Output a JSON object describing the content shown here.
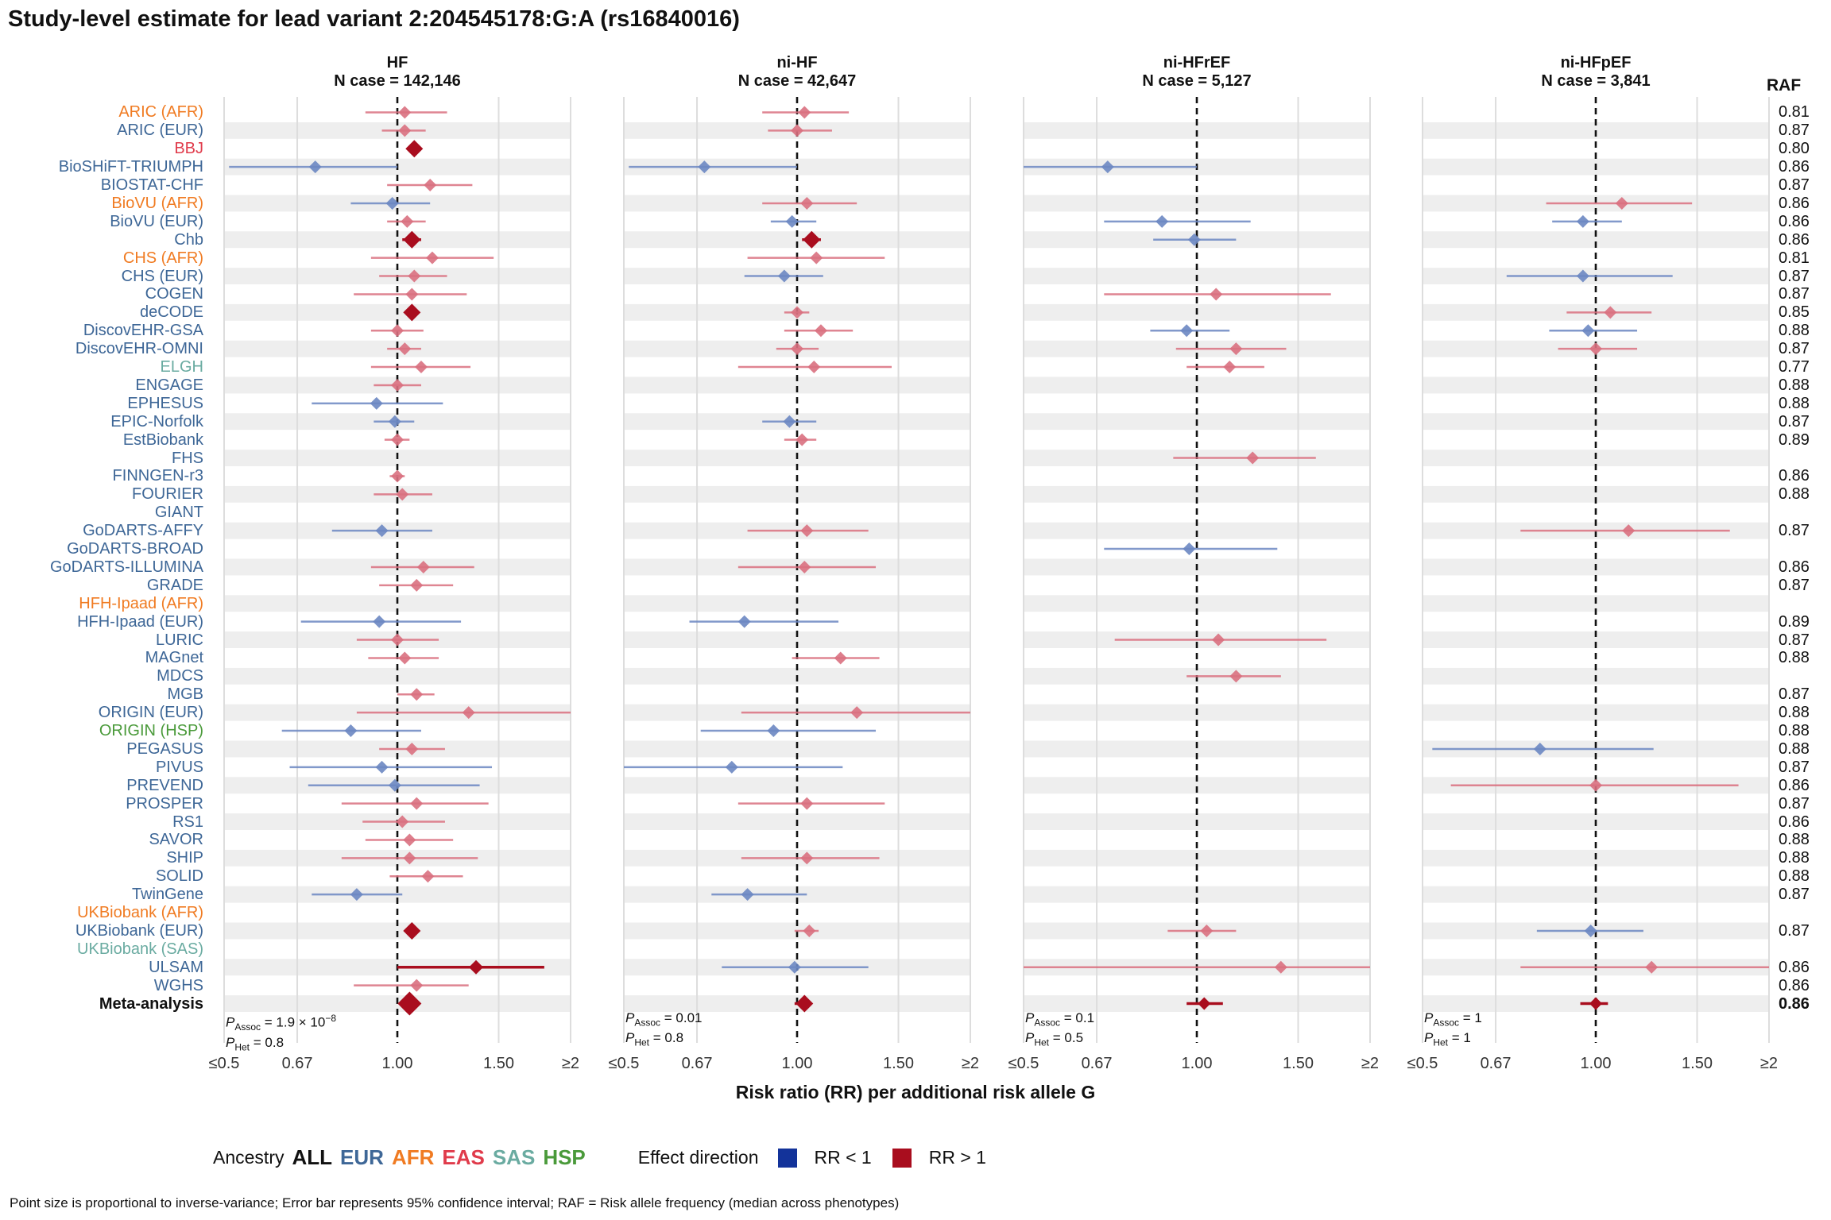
{
  "title": "Study-level estimate for lead variant 2:204545178:G:A (rs16840016)",
  "raf_header": "RAF",
  "x_axis_title": "Risk ratio (RR) per additional risk allele G",
  "x_ticks": [
    "≤0.5",
    "0.67",
    "1.00",
    "1.50",
    "≥2"
  ],
  "legend": {
    "ancestry_label": "Ancestry",
    "ancestries": [
      {
        "label": "ALL",
        "color": "#111111"
      },
      {
        "label": "EUR",
        "color": "#3E6797"
      },
      {
        "label": "AFR",
        "color": "#F07B22"
      },
      {
        "label": "EAS",
        "color": "#E03B4B"
      },
      {
        "label": "SAS",
        "color": "#6AABA1"
      },
      {
        "label": "HSP",
        "color": "#4A9A3A"
      }
    ],
    "effect_label": "Effect direction",
    "effects": [
      {
        "label": "RR < 1",
        "color": "#13339A"
      },
      {
        "label": "RR > 1",
        "color": "#A90D1E"
      }
    ]
  },
  "caption": "Point size is proportional to inverse-variance; Error bar represents 95% confidence interval; RAF = Risk allele frequency (median across phenotypes)",
  "colors": {
    "blue": "#6C87C2",
    "red": "#D9707F",
    "dark_red": "#A90D1E",
    "stripe": "#EEEEEE",
    "grid": "#DDDDDD"
  },
  "chart_data": {
    "type": "forest",
    "x_scale": "log",
    "xlim": [
      0.5,
      2
    ],
    "ticks": [
      0.5,
      0.67,
      1.0,
      1.5,
      2.0
    ],
    "studies": [
      {
        "name": "ARIC (AFR)",
        "ancestry": "AFR",
        "raf": "0.81"
      },
      {
        "name": "ARIC (EUR)",
        "ancestry": "EUR",
        "raf": "0.87"
      },
      {
        "name": "BBJ",
        "ancestry": "EAS",
        "raf": "0.80"
      },
      {
        "name": "BioSHiFT-TRIUMPH",
        "ancestry": "EUR",
        "raf": "0.86"
      },
      {
        "name": "BIOSTAT-CHF",
        "ancestry": "EUR",
        "raf": "0.87"
      },
      {
        "name": "BioVU (AFR)",
        "ancestry": "AFR",
        "raf": "0.86"
      },
      {
        "name": "BioVU (EUR)",
        "ancestry": "EUR",
        "raf": "0.86"
      },
      {
        "name": "Chb",
        "ancestry": "EUR",
        "raf": "0.86"
      },
      {
        "name": "CHS (AFR)",
        "ancestry": "AFR",
        "raf": "0.81"
      },
      {
        "name": "CHS (EUR)",
        "ancestry": "EUR",
        "raf": "0.87"
      },
      {
        "name": "COGEN",
        "ancestry": "EUR",
        "raf": "0.87"
      },
      {
        "name": "deCODE",
        "ancestry": "EUR",
        "raf": "0.85"
      },
      {
        "name": "DiscovEHR-GSA",
        "ancestry": "EUR",
        "raf": "0.88"
      },
      {
        "name": "DiscovEHR-OMNI",
        "ancestry": "EUR",
        "raf": "0.87"
      },
      {
        "name": "ELGH",
        "ancestry": "SAS",
        "raf": "0.77"
      },
      {
        "name": "ENGAGE",
        "ancestry": "EUR",
        "raf": "0.88"
      },
      {
        "name": "EPHESUS",
        "ancestry": "EUR",
        "raf": "0.88"
      },
      {
        "name": "EPIC-Norfolk",
        "ancestry": "EUR",
        "raf": "0.87"
      },
      {
        "name": "EstBiobank",
        "ancestry": "EUR",
        "raf": "0.89"
      },
      {
        "name": "FHS",
        "ancestry": "EUR",
        "raf": ""
      },
      {
        "name": "FINNGEN-r3",
        "ancestry": "EUR",
        "raf": "0.86"
      },
      {
        "name": "FOURIER",
        "ancestry": "EUR",
        "raf": "0.88"
      },
      {
        "name": "GIANT",
        "ancestry": "EUR",
        "raf": ""
      },
      {
        "name": "GoDARTS-AFFY",
        "ancestry": "EUR",
        "raf": "0.87"
      },
      {
        "name": "GoDARTS-BROAD",
        "ancestry": "EUR",
        "raf": ""
      },
      {
        "name": "GoDARTS-ILLUMINA",
        "ancestry": "EUR",
        "raf": "0.86"
      },
      {
        "name": "GRADE",
        "ancestry": "EUR",
        "raf": "0.87"
      },
      {
        "name": "HFH-Ipaad (AFR)",
        "ancestry": "AFR",
        "raf": ""
      },
      {
        "name": "HFH-Ipaad (EUR)",
        "ancestry": "EUR",
        "raf": "0.89"
      },
      {
        "name": "LURIC",
        "ancestry": "EUR",
        "raf": "0.87"
      },
      {
        "name": "MAGnet",
        "ancestry": "EUR",
        "raf": "0.88"
      },
      {
        "name": "MDCS",
        "ancestry": "EUR",
        "raf": ""
      },
      {
        "name": "MGB",
        "ancestry": "EUR",
        "raf": "0.87"
      },
      {
        "name": "ORIGIN (EUR)",
        "ancestry": "EUR",
        "raf": "0.88"
      },
      {
        "name": "ORIGIN (HSP)",
        "ancestry": "HSP",
        "raf": "0.88"
      },
      {
        "name": "PEGASUS",
        "ancestry": "EUR",
        "raf": "0.88"
      },
      {
        "name": "PIVUS",
        "ancestry": "EUR",
        "raf": "0.87"
      },
      {
        "name": "PREVEND",
        "ancestry": "EUR",
        "raf": "0.86"
      },
      {
        "name": "PROSPER",
        "ancestry": "EUR",
        "raf": "0.87"
      },
      {
        "name": "RS1",
        "ancestry": "EUR",
        "raf": "0.86"
      },
      {
        "name": "SAVOR",
        "ancestry": "EUR",
        "raf": "0.88"
      },
      {
        "name": "SHIP",
        "ancestry": "EUR",
        "raf": "0.88"
      },
      {
        "name": "SOLID",
        "ancestry": "EUR",
        "raf": "0.88"
      },
      {
        "name": "TwinGene",
        "ancestry": "EUR",
        "raf": "0.87"
      },
      {
        "name": "UKBiobank (AFR)",
        "ancestry": "AFR",
        "raf": ""
      },
      {
        "name": "UKBiobank (EUR)",
        "ancestry": "EUR",
        "raf": "0.87"
      },
      {
        "name": "UKBiobank (SAS)",
        "ancestry": "SAS",
        "raf": ""
      },
      {
        "name": "ULSAM",
        "ancestry": "EUR",
        "raf": "0.86"
      },
      {
        "name": "WGHS",
        "ancestry": "EUR",
        "raf": "0.86"
      },
      {
        "name": "Meta-analysis",
        "ancestry": "ALL",
        "raf": "0.86",
        "meta": true
      }
    ],
    "panels": [
      {
        "name": "HF",
        "n_case": "N case = 142,146",
        "p_assoc_value": "1.9",
        "p_assoc_exp": "−8",
        "p_het": "0.8",
        "estimates": [
          [
            1.03,
            0.88,
            1.22,
            1
          ],
          [
            1.03,
            0.94,
            1.12,
            1
          ],
          [
            1.07,
            1.07,
            1.07,
            2
          ],
          [
            0.72,
            0.51,
            1.0,
            1
          ],
          [
            1.14,
            0.96,
            1.35,
            1
          ],
          [
            0.98,
            0.83,
            1.14,
            1
          ],
          [
            1.04,
            0.96,
            1.12,
            1
          ],
          [
            1.06,
            1.02,
            1.1,
            2
          ],
          [
            1.15,
            0.9,
            1.47,
            1
          ],
          [
            1.07,
            0.93,
            1.22,
            1
          ],
          [
            1.06,
            0.84,
            1.32,
            1
          ],
          [
            1.06,
            1.03,
            1.09,
            2
          ],
          [
            1.0,
            0.9,
            1.11,
            1
          ],
          [
            1.03,
            0.96,
            1.1,
            1
          ],
          [
            1.1,
            0.9,
            1.34,
            1
          ],
          [
            1.0,
            0.91,
            1.1,
            1
          ],
          [
            0.92,
            0.71,
            1.2,
            1
          ],
          [
            0.99,
            0.91,
            1.07,
            1
          ],
          [
            1.0,
            0.95,
            1.05,
            1
          ],
          null,
          [
            1.0,
            0.97,
            1.03,
            1
          ],
          [
            1.02,
            0.91,
            1.15,
            1
          ],
          null,
          [
            0.94,
            0.77,
            1.15,
            1
          ],
          null,
          [
            1.11,
            0.9,
            1.36,
            1
          ],
          [
            1.08,
            0.93,
            1.25,
            1
          ],
          null,
          [
            0.93,
            0.68,
            1.29,
            1
          ],
          [
            1.0,
            0.85,
            1.18,
            1
          ],
          [
            1.03,
            0.89,
            1.18,
            1
          ],
          null,
          [
            1.08,
            1.0,
            1.16,
            1
          ],
          [
            1.33,
            0.85,
            2.1,
            1
          ],
          [
            0.83,
            0.63,
            1.1,
            1
          ],
          [
            1.06,
            0.93,
            1.21,
            1
          ],
          [
            0.94,
            0.65,
            1.46,
            1
          ],
          [
            0.99,
            0.7,
            1.39,
            1
          ],
          [
            1.08,
            0.8,
            1.44,
            1
          ],
          [
            1.02,
            0.87,
            1.21,
            1
          ],
          [
            1.05,
            0.88,
            1.25,
            1
          ],
          [
            1.05,
            0.8,
            1.38,
            1
          ],
          [
            1.13,
            0.97,
            1.3,
            1
          ],
          [
            0.85,
            0.71,
            1.02,
            1
          ],
          null,
          [
            1.06,
            1.03,
            1.09,
            2
          ],
          null,
          [
            1.37,
            1.0,
            1.8,
            3
          ],
          [
            1.08,
            0.84,
            1.33,
            1
          ],
          [
            1.05,
            1.03,
            1.07,
            4
          ]
        ]
      },
      {
        "name": "ni-HF",
        "n_case": "N case = 42,647",
        "p_assoc_value": "0.01",
        "p_assoc_exp": "",
        "p_het": "0.8",
        "estimates": [
          [
            1.03,
            0.87,
            1.23,
            1
          ],
          [
            1.0,
            0.89,
            1.15,
            1
          ],
          null,
          [
            0.69,
            0.51,
            1.0,
            1
          ],
          null,
          [
            1.04,
            0.87,
            1.27,
            1
          ],
          [
            0.98,
            0.9,
            1.08,
            1
          ],
          [
            1.06,
            1.02,
            1.1,
            2
          ],
          [
            1.08,
            0.82,
            1.42,
            1
          ],
          [
            0.95,
            0.81,
            1.11,
            1
          ],
          null,
          [
            1.0,
            0.95,
            1.05,
            1
          ],
          [
            1.1,
            0.95,
            1.25,
            1
          ],
          [
            1.0,
            0.92,
            1.09,
            1
          ],
          [
            1.07,
            0.79,
            1.46,
            1
          ],
          null,
          null,
          [
            0.97,
            0.87,
            1.08,
            1
          ],
          [
            1.02,
            0.95,
            1.08,
            1
          ],
          null,
          null,
          null,
          null,
          [
            1.04,
            0.82,
            1.33,
            1
          ],
          null,
          [
            1.03,
            0.79,
            1.37,
            1
          ],
          null,
          null,
          [
            0.81,
            0.65,
            1.18,
            1
          ],
          null,
          [
            1.19,
            0.98,
            1.39,
            1
          ],
          null,
          null,
          [
            1.27,
            0.8,
            2.0,
            1
          ],
          [
            0.91,
            0.68,
            1.37,
            1
          ],
          null,
          [
            0.77,
            0.5,
            1.2,
            1
          ],
          null,
          [
            1.04,
            0.79,
            1.42,
            1
          ],
          null,
          null,
          [
            1.04,
            0.8,
            1.39,
            1
          ],
          null,
          [
            0.82,
            0.71,
            1.04,
            1
          ],
          null,
          [
            1.05,
            0.99,
            1.09,
            1
          ],
          null,
          [
            0.99,
            0.74,
            1.33,
            1
          ],
          null,
          [
            1.03,
            0.99,
            1.06,
            2
          ]
        ]
      },
      {
        "name": "ni-HFrEF",
        "n_case": "N case = 5,127",
        "p_assoc_value": "0.1",
        "p_assoc_exp": "",
        "p_het": "0.5",
        "estimates": [
          null,
          null,
          null,
          [
            0.7,
            0.5,
            1.0,
            1
          ],
          null,
          null,
          [
            0.87,
            0.69,
            1.24,
            1
          ],
          [
            0.99,
            0.84,
            1.17,
            1
          ],
          null,
          null,
          [
            1.08,
            0.69,
            1.71,
            1
          ],
          null,
          [
            0.96,
            0.83,
            1.14,
            1
          ],
          [
            1.17,
            0.92,
            1.43,
            1
          ],
          [
            1.14,
            0.96,
            1.31,
            1
          ],
          null,
          null,
          null,
          null,
          [
            1.25,
            0.91,
            1.61,
            1
          ],
          null,
          null,
          null,
          null,
          [
            0.97,
            0.69,
            1.38,
            1
          ],
          null,
          null,
          null,
          null,
          [
            1.09,
            0.72,
            1.68,
            1
          ],
          null,
          [
            1.17,
            0.96,
            1.4,
            1
          ],
          null,
          null,
          null,
          null,
          null,
          null,
          null,
          null,
          null,
          null,
          null,
          null,
          null,
          [
            1.04,
            0.89,
            1.17,
            1
          ],
          null,
          [
            1.4,
            0.5,
            2.0,
            1
          ],
          null,
          [
            1.03,
            0.96,
            1.11,
            1
          ]
        ]
      },
      {
        "name": "ni-HFpEF",
        "n_case": "N case = 3,841",
        "p_assoc_value": "1",
        "p_assoc_exp": "",
        "p_het": "1",
        "estimates": [
          null,
          null,
          null,
          null,
          null,
          [
            1.11,
            0.82,
            1.47,
            1
          ],
          [
            0.95,
            0.84,
            1.11,
            1
          ],
          null,
          null,
          [
            0.95,
            0.7,
            1.36,
            1
          ],
          null,
          [
            1.06,
            0.89,
            1.25,
            1
          ],
          [
            0.97,
            0.83,
            1.18,
            1
          ],
          [
            1.0,
            0.86,
            1.18,
            1
          ],
          null,
          null,
          null,
          null,
          null,
          null,
          null,
          null,
          null,
          [
            1.14,
            0.74,
            1.71,
            1
          ],
          null,
          null,
          null,
          null,
          null,
          null,
          null,
          null,
          null,
          null,
          null,
          [
            0.8,
            0.52,
            1.26,
            1
          ],
          null,
          [
            1.0,
            0.56,
            1.77,
            1
          ],
          null,
          null,
          null,
          null,
          null,
          null,
          null,
          [
            0.98,
            0.79,
            1.21,
            1
          ],
          null,
          [
            1.25,
            0.74,
            2.0,
            1
          ],
          null,
          [
            1.0,
            0.94,
            1.05,
            1
          ]
        ]
      }
    ]
  }
}
